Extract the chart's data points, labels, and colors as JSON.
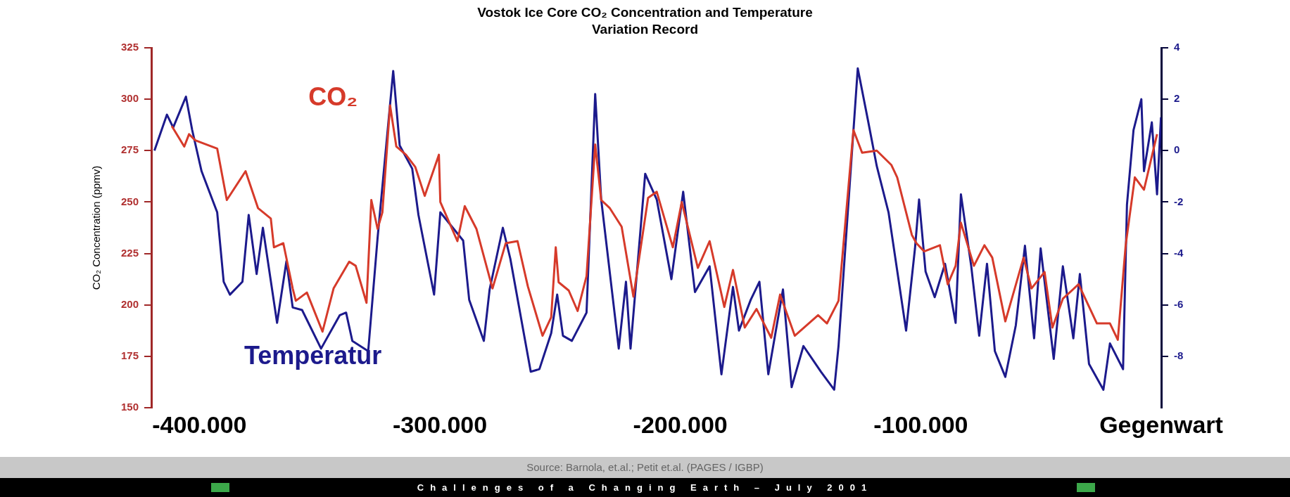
{
  "chart_data": {
    "type": "line",
    "title": "Vostok Ice Core CO₂ Concentration and Temperature Variation Record",
    "ylabel": "CO₂ Concentration (ppmv)",
    "xlim": [
      -420000,
      0
    ],
    "xticks": [
      {
        "value": -400000,
        "label": "-400.000"
      },
      {
        "value": -300000,
        "label": "-300.000"
      },
      {
        "value": -200000,
        "label": "-200.000"
      },
      {
        "value": -100000,
        "label": "-100.000"
      },
      {
        "value": 0,
        "label": "Gegenwart"
      }
    ],
    "ylim": [
      150,
      325
    ],
    "yticks": [
      150,
      175,
      200,
      225,
      250,
      275,
      300,
      325
    ],
    "y2lim": [
      -10,
      4
    ],
    "y2ticks": [
      -8,
      -6,
      -4,
      -2,
      0,
      2,
      4
    ],
    "grid": false,
    "legend": false,
    "marker": "none",
    "line_style": "solid",
    "series": [
      {
        "name": "CO₂",
        "color": "#d63a2a",
        "x": [
          -411500,
          -406300,
          -404300,
          -401700,
          -392600,
          -388600,
          -380800,
          -375600,
          -370300,
          -369000,
          -365100,
          -361200,
          -359900,
          -355300,
          -348800,
          -344200,
          -337700,
          -335000,
          -330500,
          -328500,
          -325900,
          -323900,
          -320700,
          -318100,
          -314100,
          -310200,
          -306300,
          -300400,
          -299800,
          -292700,
          -289650,
          -284800,
          -278100,
          -272600,
          -267700,
          -263400,
          -257300,
          -253700,
          -251800,
          -250600,
          -246400,
          -242700,
          -239000,
          -235400,
          -232900,
          -229300,
          -224400,
          -219500,
          -213400,
          -209800,
          -203100,
          -199400,
          -192700,
          -187800,
          -181700,
          -178100,
          -173200,
          -168300,
          -162200,
          -158500,
          -152400,
          -142700,
          -139000,
          -134200,
          -128000,
          -124400,
          -118300,
          -112200,
          -109800,
          -103700,
          -101800,
          -98560,
          -92030,
          -88770,
          -85500,
          -83330,
          -77890,
          -73530,
          -70270,
          -64830,
          -57220,
          -53950,
          -48510,
          -45250,
          -40900,
          -34370,
          -26750,
          -21310,
          -18050,
          -14780,
          -10970,
          -7170,
          -1730
        ],
        "values": [
          287,
          277,
          283,
          280,
          276,
          251,
          265,
          247,
          242,
          228,
          230,
          208,
          202,
          206,
          187,
          208,
          221,
          219,
          201,
          251,
          237,
          245,
          297,
          277,
          273,
          267,
          253,
          273,
          250,
          231,
          248,
          237,
          208,
          230,
          231,
          209,
          185,
          194,
          228,
          211,
          207,
          197,
          214,
          278,
          251,
          247,
          238,
          204,
          252,
          255,
          228,
          250,
          218,
          231,
          199,
          217,
          189,
          198,
          184,
          205,
          185,
          195,
          191,
          202,
          285,
          274,
          275,
          268,
          262,
          234,
          230,
          226,
          229,
          210,
          219,
          240,
          219,
          229,
          223,
          192,
          223,
          208,
          216,
          189,
          203,
          210,
          191,
          191,
          183,
          229,
          262,
          256,
          283
        ]
      },
      {
        "name": "Temperatur",
        "color": "#1c1a8c",
        "axis": "y2",
        "x": [
          -418700,
          -413500,
          -410900,
          -405600,
          -403000,
          -399100,
          -392600,
          -389900,
          -387300,
          -382100,
          -379500,
          -376200,
          -373600,
          -367700,
          -363800,
          -361200,
          -357300,
          -349400,
          -341600,
          -339000,
          -336400,
          -329800,
          -325900,
          -319400,
          -316700,
          -311500,
          -308900,
          -302400,
          -299800,
          -290300,
          -287800,
          -281700,
          -279300,
          -273800,
          -270700,
          -262200,
          -258600,
          -253700,
          -251200,
          -248800,
          -245100,
          -239000,
          -235400,
          -232900,
          -225600,
          -222600,
          -220700,
          -214600,
          -209800,
          -203700,
          -198800,
          -193900,
          -187800,
          -182900,
          -178100,
          -175600,
          -170700,
          -167100,
          -163400,
          -157300,
          -153700,
          -148800,
          -141500,
          -136000,
          -134200,
          -126200,
          -122000,
          -118300,
          -113400,
          -106100,
          -102400,
          -100700,
          -98000,
          -94200,
          -89900,
          -85500,
          -83300,
          -79000,
          -75700,
          -72450,
          -69180,
          -64830,
          -60480,
          -56670,
          -52860,
          -50140,
          -44700,
          -40900,
          -36550,
          -33830,
          -30020,
          -24040,
          -21310,
          -15870,
          -14240,
          -11520,
          -8260,
          -7170,
          -3900,
          -1730,
          -100
        ],
        "values": [
          0.0,
          1.4,
          0.9,
          2.1,
          0.8,
          -0.8,
          -2.4,
          -5.1,
          -5.6,
          -5.1,
          -2.5,
          -4.8,
          -3.0,
          -6.7,
          -4.3,
          -6.1,
          -6.2,
          -7.7,
          -6.4,
          -6.3,
          -7.4,
          -7.8,
          -3.4,
          3.1,
          0.2,
          -0.7,
          -2.5,
          -5.6,
          -2.4,
          -3.5,
          -5.8,
          -7.4,
          -5.4,
          -3.0,
          -4.2,
          -8.6,
          -8.5,
          -7.1,
          -5.6,
          -7.2,
          -7.4,
          -6.3,
          2.2,
          -1.9,
          -7.7,
          -5.1,
          -7.7,
          -0.9,
          -1.9,
          -5.0,
          -1.6,
          -5.5,
          -4.5,
          -8.7,
          -5.3,
          -7.0,
          -5.8,
          -5.1,
          -8.7,
          -5.4,
          -9.2,
          -7.6,
          -8.6,
          -9.3,
          -7.6,
          3.2,
          1.2,
          -0.6,
          -2.4,
          -7.0,
          -3.8,
          -1.9,
          -4.7,
          -5.7,
          -4.4,
          -6.7,
          -1.7,
          -4.5,
          -7.2,
          -4.4,
          -7.8,
          -8.8,
          -6.8,
          -3.7,
          -7.3,
          -3.8,
          -8.1,
          -4.5,
          -7.3,
          -4.8,
          -8.3,
          -9.3,
          -7.5,
          -8.5,
          -2.1,
          0.8,
          2.0,
          -0.8,
          1.1,
          -1.7,
          1.3
        ]
      }
    ],
    "annotations": [
      "Source: Barnola, et.al.; Petit et.al.  (PAGES / IGBP)",
      "Challenges of a Changing Earth – July 2001"
    ]
  }
}
